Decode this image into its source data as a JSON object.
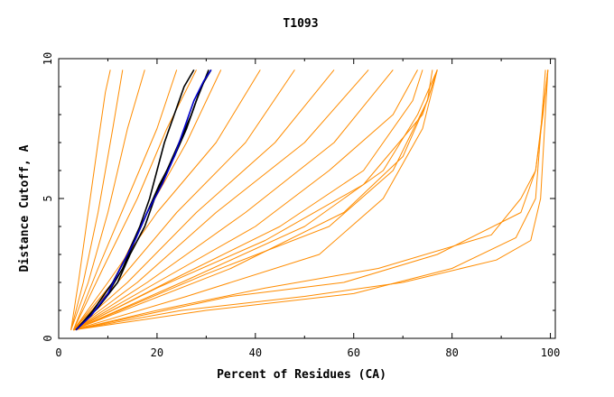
{
  "chart_data": {
    "type": "line",
    "title": "T1093",
    "xlabel": "Percent of Residues (CA)",
    "ylabel": "Distance Cutoff, A",
    "xlim": [
      0,
      101
    ],
    "ylim": [
      0,
      10
    ],
    "xticks": [
      0,
      20,
      40,
      60,
      80,
      100
    ],
    "yticks": [
      0,
      5,
      10
    ],
    "xtick_labels": [
      "0",
      "20",
      "40",
      "60",
      "80",
      "100"
    ],
    "ytick_labels": [
      "0",
      "5",
      "10"
    ],
    "grid": false,
    "legend": "none",
    "colors": {
      "models": "#ff8c00",
      "highlight_black": "#000000",
      "highlight_blue": "#0000cc",
      "axis": "#000000"
    },
    "series": [
      {
        "color": "#ff8c00",
        "x": [
          2.5,
          4,
          6,
          8,
          9.5,
          10.5
        ],
        "y": [
          0.3,
          2,
          4.5,
          7,
          8.8,
          9.6
        ]
      },
      {
        "color": "#ff8c00",
        "x": [
          2.5,
          5,
          8,
          11,
          13
        ],
        "y": [
          0.3,
          2,
          4.5,
          7.5,
          9.6
        ]
      },
      {
        "color": "#ff8c00",
        "x": [
          2.5,
          6,
          10,
          14,
          17.5
        ],
        "y": [
          0.3,
          2,
          4.5,
          7.5,
          9.6
        ]
      },
      {
        "color": "#ff8c00",
        "x": [
          3,
          8,
          14,
          20,
          24
        ],
        "y": [
          0.3,
          2.5,
          5,
          7.5,
          9.6
        ]
      },
      {
        "color": "#ff8c00",
        "x": [
          3,
          10,
          20,
          32,
          41
        ],
        "y": [
          0.3,
          2,
          4.5,
          7,
          9.6
        ]
      },
      {
        "color": "#ff8c00",
        "x": [
          3,
          12,
          24,
          38,
          48
        ],
        "y": [
          0.3,
          2,
          4.5,
          7,
          9.6
        ]
      },
      {
        "color": "#ff8c00",
        "x": [
          3,
          14,
          28,
          44,
          56
        ],
        "y": [
          0.3,
          2,
          4.5,
          7,
          9.6
        ]
      },
      {
        "color": "#ff8c00",
        "x": [
          3,
          16,
          32,
          50,
          63
        ],
        "y": [
          0.3,
          2,
          4.5,
          7,
          9.6
        ]
      },
      {
        "color": "#ff8c00",
        "x": [
          3,
          18,
          38,
          56,
          68
        ],
        "y": [
          0.3,
          2,
          4.5,
          7,
          9.6
        ]
      },
      {
        "color": "#ff8c00",
        "x": [
          3,
          22,
          45,
          62,
          72,
          74
        ],
        "y": [
          0.3,
          2,
          4,
          6,
          8.5,
          9.6
        ]
      },
      {
        "color": "#ff8c00",
        "x": [
          3,
          25,
          50,
          66,
          73,
          77
        ],
        "y": [
          0.3,
          2,
          4,
          6,
          8,
          9.6
        ]
      },
      {
        "color": "#ff8c00",
        "x": [
          3,
          30,
          55,
          68,
          75,
          76
        ],
        "y": [
          0.3,
          2.3,
          4,
          6,
          8.5,
          9.6
        ]
      },
      {
        "color": "#ff8c00",
        "x": [
          3,
          20,
          42,
          62,
          74,
          77
        ],
        "y": [
          0.3,
          1.8,
          3.5,
          5.5,
          8,
          9.6
        ]
      },
      {
        "color": "#ff8c00",
        "x": [
          3,
          35,
          58,
          70,
          75,
          77
        ],
        "y": [
          0.3,
          2.5,
          4.5,
          6.5,
          8.5,
          9.6
        ]
      },
      {
        "color": "#ff8c00",
        "x": [
          3,
          26,
          53,
          66,
          74,
          77
        ],
        "y": [
          0.3,
          1.5,
          3,
          5,
          7.5,
          9.6
        ]
      },
      {
        "color": "#ff8c00",
        "x": [
          3,
          20,
          40,
          55,
          68,
          73
        ],
        "y": [
          0.3,
          2,
          4,
          6,
          8,
          9.6
        ]
      },
      {
        "color": "#ff8c00",
        "x": [
          3,
          11,
          18,
          26,
          33
        ],
        "y": [
          0.3,
          2,
          4.5,
          7,
          9.6
        ]
      },
      {
        "color": "#ff8c00",
        "x": [
          3,
          9,
          16,
          22,
          28
        ],
        "y": [
          0.3,
          2.5,
          5,
          7.5,
          9.6
        ]
      },
      {
        "color": "#ff8c00",
        "x": [
          3,
          20,
          42,
          65,
          88,
          94,
          97,
          98.5,
          99.5
        ],
        "y": [
          0.3,
          1,
          1.8,
          2.5,
          3.7,
          5,
          6,
          8,
          9.6
        ]
      },
      {
        "color": "#ff8c00",
        "x": [
          3,
          25,
          50,
          70,
          89,
          96,
          98,
          99.5
        ],
        "y": [
          0.3,
          1,
          1.5,
          2,
          2.8,
          3.5,
          5,
          9.6
        ]
      },
      {
        "color": "#ff8c00",
        "x": [
          3,
          30,
          60,
          80,
          93,
          97,
          99
        ],
        "y": [
          0.3,
          1,
          1.6,
          2.5,
          3.6,
          5,
          9.6
        ]
      },
      {
        "color": "#ff8c00",
        "x": [
          3,
          35,
          58,
          77,
          94,
          97,
          99.5
        ],
        "y": [
          0.3,
          1.5,
          2,
          3,
          4.5,
          6,
          9.6
        ]
      },
      {
        "color": "#000000",
        "x": [
          3.5,
          6.5,
          10,
          13,
          15.5,
          18,
          20.5,
          23.5,
          26,
          28,
          30.5
        ],
        "y": [
          0.3,
          0.8,
          1.6,
          2.5,
          3.5,
          4.5,
          5.5,
          6.5,
          7.5,
          8.5,
          9.6
        ]
      },
      {
        "color": "#000000",
        "x": [
          3.5,
          7,
          11,
          14,
          16.5,
          18.5,
          20,
          21.5,
          23.5,
          25.5,
          27.5
        ],
        "y": [
          0.3,
          1,
          2,
          3,
          4,
          5,
          6,
          7,
          8,
          9,
          9.6
        ]
      },
      {
        "color": "#000000",
        "x": [
          3.5,
          8,
          12,
          14.5,
          17.5,
          19.5,
          22,
          24.5,
          27,
          29,
          31
        ],
        "y": [
          0.3,
          1.1,
          2,
          3,
          4,
          5,
          6,
          7,
          8,
          9,
          9.6
        ]
      },
      {
        "color": "#0000cc",
        "x": [
          3.5,
          6.5,
          10,
          12.5,
          15.5,
          18,
          21,
          23.5,
          25.5,
          27.5,
          29.5,
          31
        ],
        "y": [
          0.3,
          0.8,
          1.6,
          2.5,
          3.5,
          4.5,
          5.5,
          6.5,
          7.5,
          8.5,
          9.2,
          9.6
        ]
      }
    ]
  }
}
